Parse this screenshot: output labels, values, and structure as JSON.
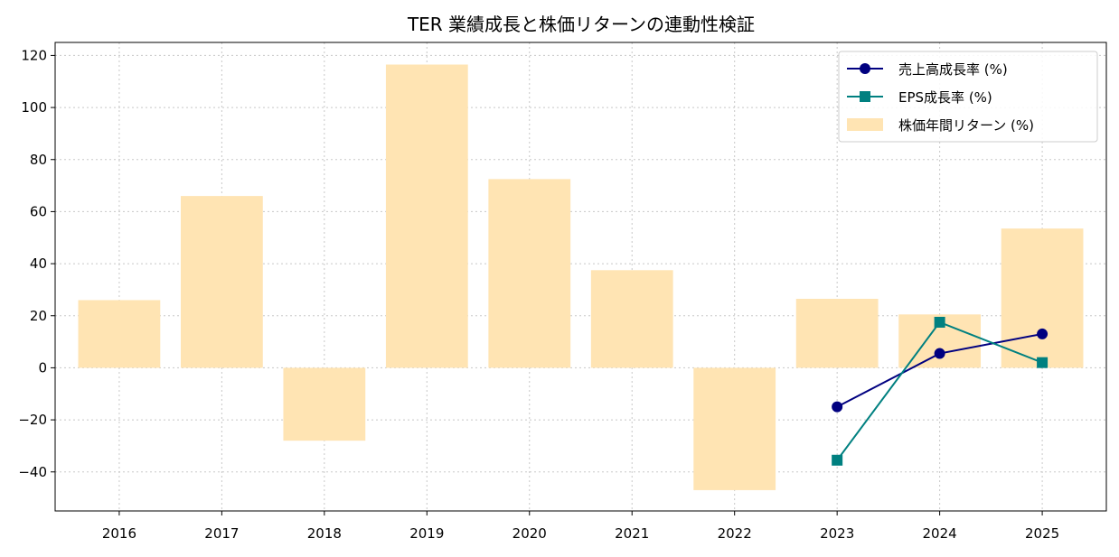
{
  "chart_data": {
    "type": "bar",
    "title": "TER 業績成長と株価リターンの連動性検証",
    "xlabel": "",
    "ylabel": "",
    "categories": [
      "2016",
      "2017",
      "2018",
      "2019",
      "2020",
      "2021",
      "2022",
      "2023",
      "2024",
      "2025"
    ],
    "ylim": [
      -55,
      125
    ],
    "yticks": [
      -40,
      -20,
      0,
      20,
      40,
      60,
      80,
      100,
      120
    ],
    "grid": true,
    "legend_position": "top-right",
    "series": [
      {
        "name": "売上高成長率 (%)",
        "kind": "line",
        "marker": "circle",
        "color": "#000080",
        "values": [
          null,
          null,
          null,
          null,
          null,
          null,
          null,
          -15.0,
          5.5,
          13.0
        ]
      },
      {
        "name": "EPS成長率 (%)",
        "kind": "line",
        "marker": "square",
        "color": "#008080",
        "values": [
          null,
          null,
          null,
          null,
          null,
          null,
          null,
          -35.5,
          17.5,
          2.0
        ]
      },
      {
        "name": "株価年間リターン (%)",
        "kind": "bar",
        "color": "#ffe4b3",
        "values": [
          26.0,
          66.0,
          -28.0,
          116.5,
          72.5,
          37.5,
          -47.0,
          26.5,
          20.5,
          53.5
        ]
      }
    ]
  }
}
